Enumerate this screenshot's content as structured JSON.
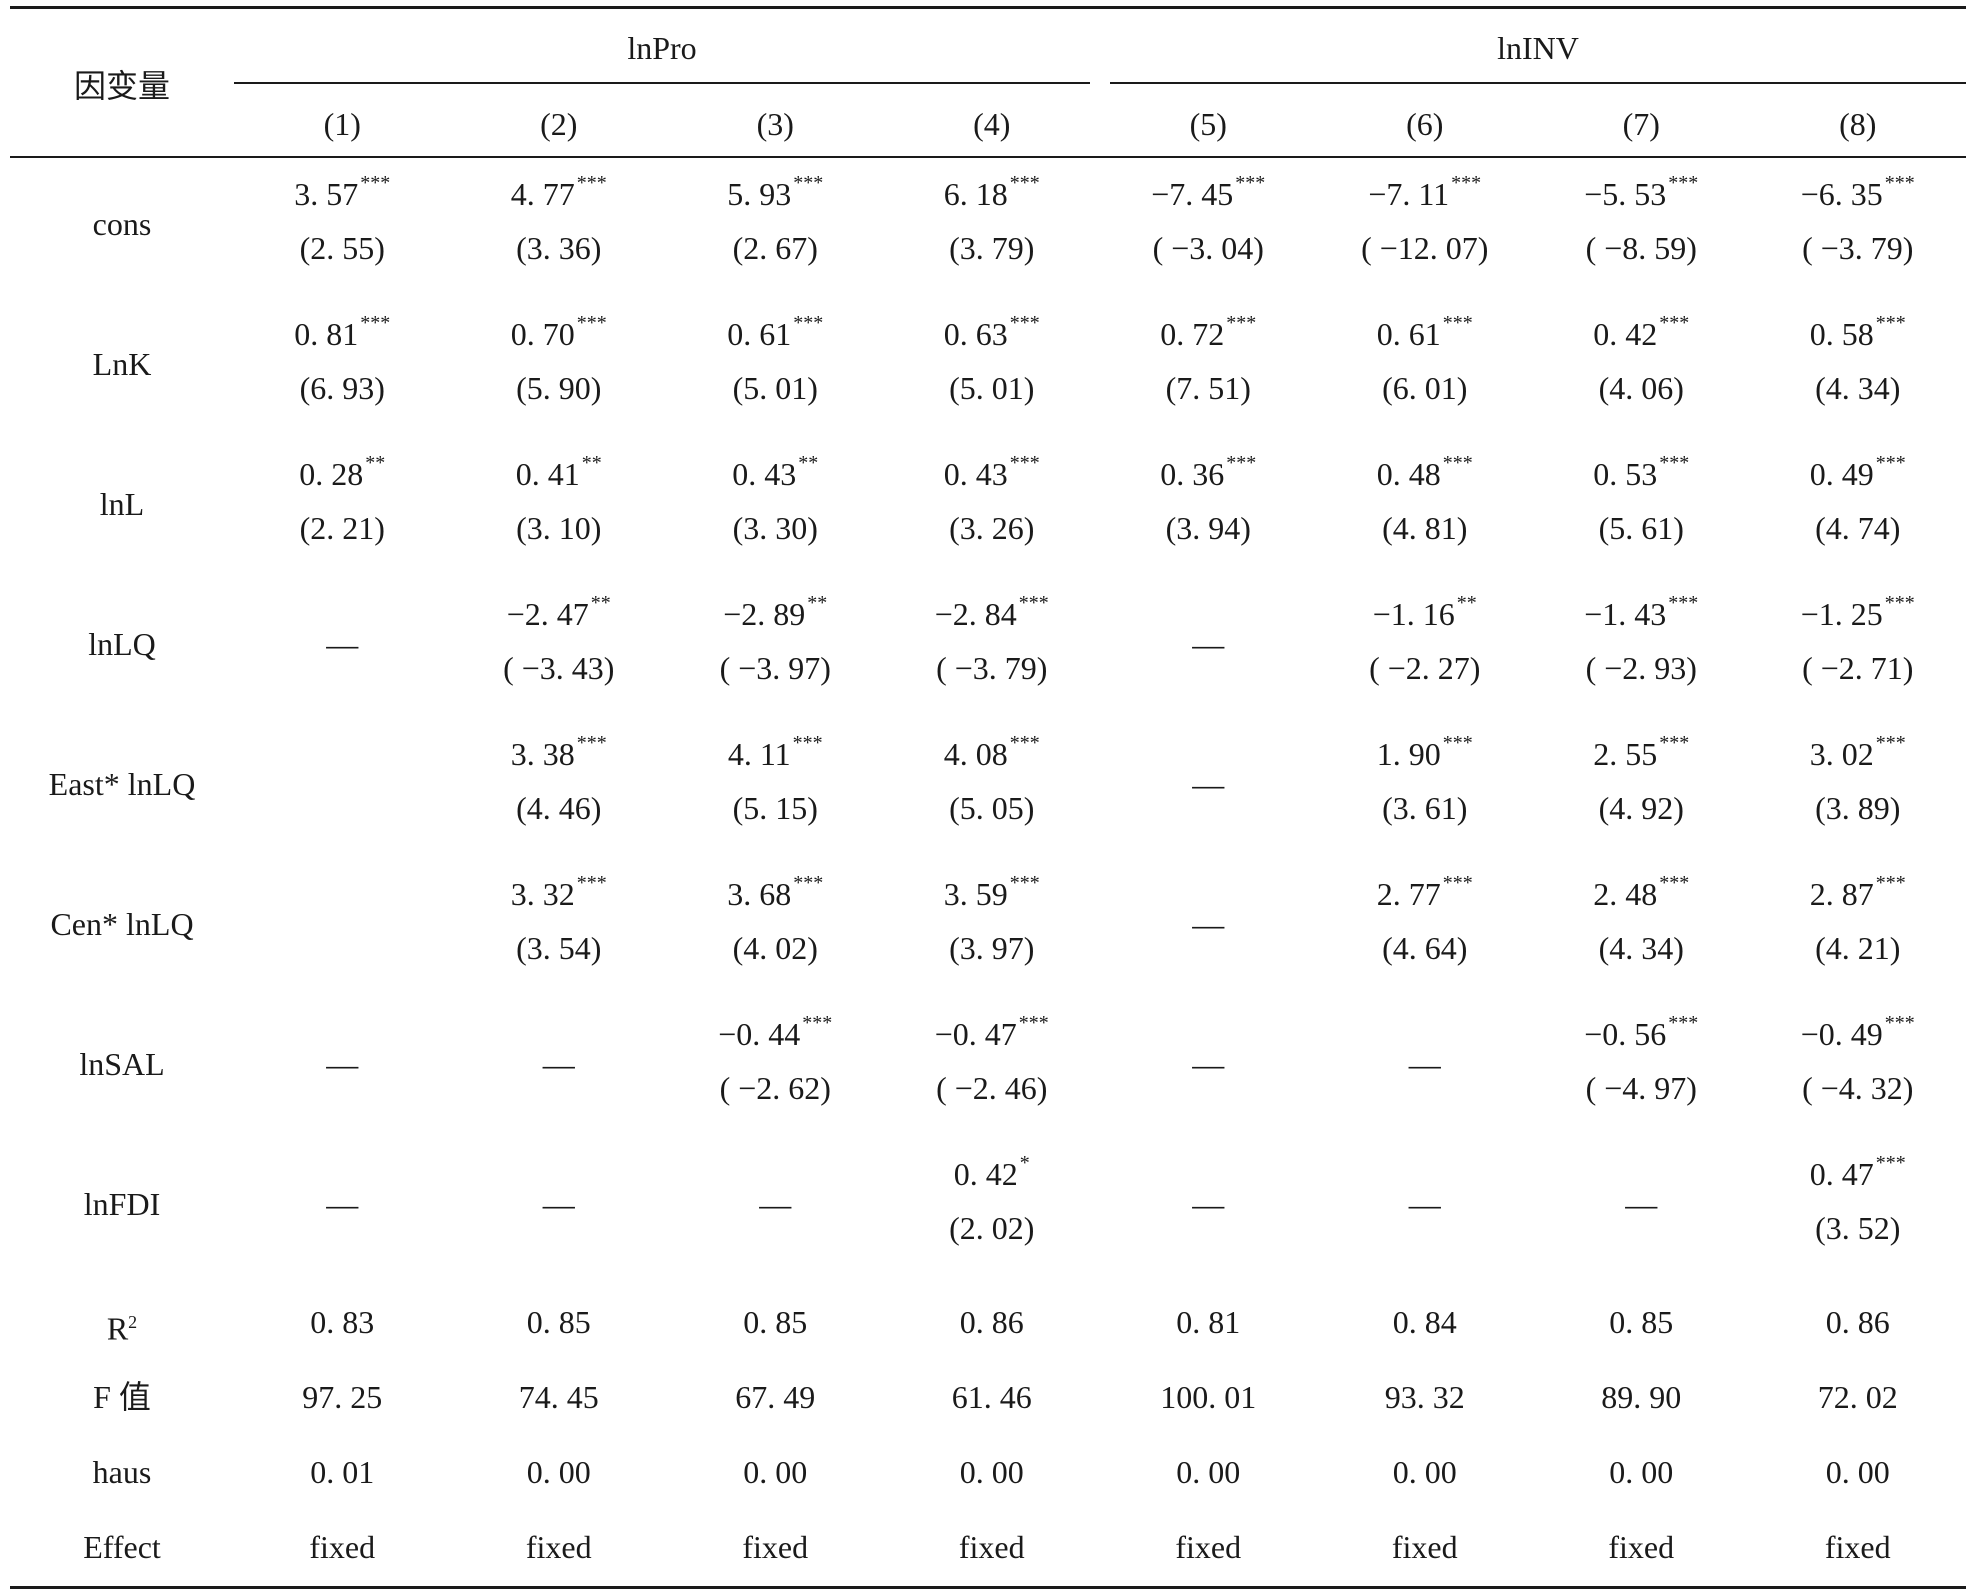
{
  "header": {
    "dep_var_label": "因变量",
    "groups": [
      {
        "label": "lnPro"
      },
      {
        "label": "lnINV"
      }
    ],
    "columns": [
      "(1)",
      "(2)",
      "(3)",
      "(4)",
      "(5)",
      "(6)",
      "(7)",
      "(8)"
    ]
  },
  "rows": [
    {
      "var": "cons",
      "cells": [
        {
          "coef": "3. 57",
          "stars": "***",
          "t": "(2. 55)"
        },
        {
          "coef": "4. 77",
          "stars": "***",
          "t": "(3. 36)"
        },
        {
          "coef": "5. 93",
          "stars": "***",
          "t": "(2. 67)"
        },
        {
          "coef": "6. 18",
          "stars": "***",
          "t": "(3. 79)"
        },
        {
          "coef": "−7. 45",
          "stars": "***",
          "t": "( −3. 04)"
        },
        {
          "coef": "−7. 11",
          "stars": "***",
          "t": "( −12. 07)"
        },
        {
          "coef": "−5. 53",
          "stars": "***",
          "t": "( −8. 59)"
        },
        {
          "coef": "−6. 35",
          "stars": "***",
          "t": "( −3. 79)"
        }
      ]
    },
    {
      "var": "LnK",
      "cells": [
        {
          "coef": "0. 81",
          "stars": "***",
          "t": "(6. 93)"
        },
        {
          "coef": "0. 70",
          "stars": "***",
          "t": "(5. 90)"
        },
        {
          "coef": "0. 61",
          "stars": "***",
          "t": "(5. 01)"
        },
        {
          "coef": "0. 63",
          "stars": "***",
          "t": "(5. 01)"
        },
        {
          "coef": "0. 72",
          "stars": "***",
          "t": "(7. 51)"
        },
        {
          "coef": "0. 61",
          "stars": "***",
          "t": "(6. 01)"
        },
        {
          "coef": "0. 42",
          "stars": "***",
          "t": "(4. 06)"
        },
        {
          "coef": "0. 58",
          "stars": "***",
          "t": "(4. 34)"
        }
      ]
    },
    {
      "var": "lnL",
      "cells": [
        {
          "coef": "0. 28",
          "stars": "**",
          "t": "(2. 21)"
        },
        {
          "coef": "0. 41",
          "stars": "**",
          "t": "(3. 10)"
        },
        {
          "coef": "0. 43",
          "stars": "**",
          "t": "(3. 30)"
        },
        {
          "coef": "0. 43",
          "stars": "***",
          "t": "(3. 26)"
        },
        {
          "coef": "0. 36",
          "stars": "***",
          "t": "(3. 94)"
        },
        {
          "coef": "0. 48",
          "stars": "***",
          "t": "(4. 81)"
        },
        {
          "coef": "0. 53",
          "stars": "***",
          "t": "(5. 61)"
        },
        {
          "coef": "0. 49",
          "stars": "***",
          "t": "(4. 74)"
        }
      ]
    },
    {
      "var": "lnLQ",
      "cells": [
        {
          "dash": "—"
        },
        {
          "coef": "−2. 47",
          "stars": "**",
          "t": "( −3. 43)"
        },
        {
          "coef": "−2. 89",
          "stars": "**",
          "t": "( −3. 97)"
        },
        {
          "coef": "−2. 84",
          "stars": "***",
          "t": "( −3. 79)"
        },
        {
          "dash": "—"
        },
        {
          "coef": "−1. 16",
          "stars": "**",
          "t": "( −2. 27)"
        },
        {
          "coef": "−1. 43",
          "stars": "***",
          "t": "( −2. 93)"
        },
        {
          "coef": "−1. 25",
          "stars": "***",
          "t": "( −2. 71)"
        }
      ]
    },
    {
      "var": "East*  lnLQ",
      "cells": [
        {
          "empty": true
        },
        {
          "coef": "3. 38",
          "stars": "***",
          "t": "(4. 46)"
        },
        {
          "coef": "4. 11",
          "stars": "***",
          "t": "(5. 15)"
        },
        {
          "coef": "4. 08",
          "stars": "***",
          "t": "(5. 05)"
        },
        {
          "dash": "—"
        },
        {
          "coef": "1. 90",
          "stars": "***",
          "t": "(3. 61)"
        },
        {
          "coef": "2. 55",
          "stars": "***",
          "t": "(4. 92)"
        },
        {
          "coef": "3. 02",
          "stars": "***",
          "t": "(3. 89)"
        }
      ]
    },
    {
      "var": "Cen*  lnLQ",
      "cells": [
        {
          "empty": true
        },
        {
          "coef": "3. 32",
          "stars": "***",
          "t": "(3. 54)"
        },
        {
          "coef": "3. 68",
          "stars": "***",
          "t": "(4. 02)"
        },
        {
          "coef": "3. 59",
          "stars": "***",
          "t": "(3. 97)"
        },
        {
          "dash": "—"
        },
        {
          "coef": "2. 77",
          "stars": "***",
          "t": "(4. 64)"
        },
        {
          "coef": "2. 48",
          "stars": "***",
          "t": "(4. 34)"
        },
        {
          "coef": "2. 87",
          "stars": "***",
          "t": "(4. 21)"
        }
      ]
    },
    {
      "var": "lnSAL",
      "cells": [
        {
          "dash": "—"
        },
        {
          "dash": "—"
        },
        {
          "coef": "−0. 44",
          "stars": "***",
          "t": "( −2. 62)"
        },
        {
          "coef": "−0. 47",
          "stars": "***",
          "t": "( −2. 46)"
        },
        {
          "dash": "—"
        },
        {
          "dash": "—"
        },
        {
          "coef": "−0. 56",
          "stars": "***",
          "t": "( −4. 97)"
        },
        {
          "coef": "−0. 49",
          "stars": "***",
          "t": "( −4. 32)"
        }
      ]
    },
    {
      "var": "lnFDI",
      "cells": [
        {
          "dash": "—"
        },
        {
          "dash": "—"
        },
        {
          "dash": "—"
        },
        {
          "coef": "0. 42",
          "stars": "*",
          "t": "(2. 02)"
        },
        {
          "dash": "—"
        },
        {
          "dash": "—"
        },
        {
          "dash": "—"
        },
        {
          "coef": "0. 47",
          "stars": "***",
          "t": "(3. 52)"
        }
      ]
    }
  ],
  "stats": [
    {
      "label": "R",
      "sup": "2",
      "values": [
        "0. 83",
        "0. 85",
        "0. 85",
        "0. 86",
        "0. 81",
        "0. 84",
        "0. 85",
        "0. 86"
      ]
    },
    {
      "label": "F 值",
      "values": [
        "97. 25",
        "74. 45",
        "67. 49",
        "61. 46",
        "100. 01",
        "93. 32",
        "89. 90",
        "72. 02"
      ]
    },
    {
      "label": "haus",
      "values": [
        "0. 01",
        "0. 00",
        "0. 00",
        "0. 00",
        "0. 00",
        "0. 00",
        "0. 00",
        "0. 00"
      ]
    },
    {
      "label": "Effect",
      "values": [
        "fixed",
        "fixed",
        "fixed",
        "fixed",
        "fixed",
        "fixed",
        "fixed",
        "fixed"
      ]
    }
  ]
}
